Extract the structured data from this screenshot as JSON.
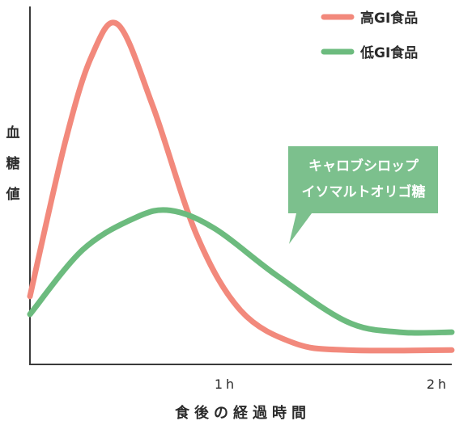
{
  "chart_data": {
    "type": "line",
    "xlabel": "食後の経過時間",
    "ylabel": "血糖値",
    "x_tick_labels": [
      "1h",
      "2h"
    ],
    "xlim": [
      0,
      2.4
    ],
    "ylim": [
      0,
      10
    ],
    "grid": false,
    "legend_position": "top-right",
    "series": [
      {
        "name": "高GI食品",
        "color": "#f2897c",
        "points": [
          [
            0.0,
            1.9
          ],
          [
            0.2,
            6.2
          ],
          [
            0.35,
            8.6
          ],
          [
            0.5,
            9.5
          ],
          [
            0.7,
            7.2
          ],
          [
            0.95,
            3.6
          ],
          [
            1.2,
            1.5
          ],
          [
            1.5,
            0.6
          ],
          [
            1.8,
            0.4
          ],
          [
            2.4,
            0.4
          ]
        ]
      },
      {
        "name": "低GI食品",
        "color": "#6cbb7e",
        "points": [
          [
            0.0,
            1.4
          ],
          [
            0.3,
            3.2
          ],
          [
            0.6,
            4.1
          ],
          [
            0.8,
            4.3
          ],
          [
            1.05,
            3.8
          ],
          [
            1.4,
            2.5
          ],
          [
            1.8,
            1.2
          ],
          [
            2.1,
            0.9
          ],
          [
            2.4,
            0.9
          ]
        ]
      }
    ],
    "annotation": {
      "lines": [
        "キャロブシロップ",
        "イソマルトオリゴ糖"
      ],
      "color": "#7cc08d"
    }
  }
}
